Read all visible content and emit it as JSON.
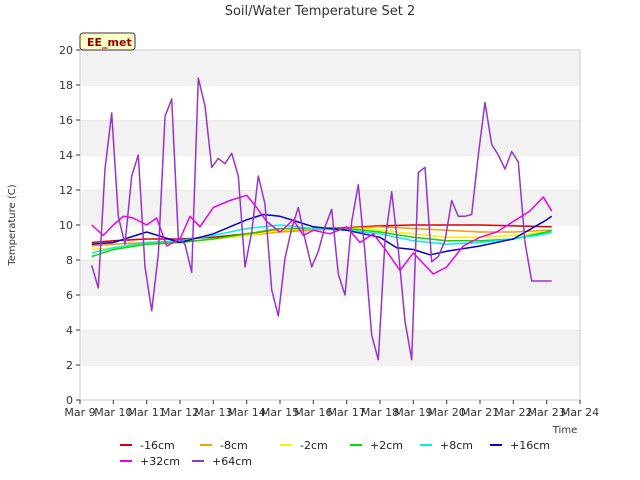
{
  "chart_data": {
    "type": "line",
    "title": "Soil/Water Temperature Set 2",
    "xlabel": "Time",
    "ylabel": "Temperature (C)",
    "ylim": [
      0,
      20
    ],
    "yticks": [
      0,
      2,
      4,
      6,
      8,
      10,
      12,
      14,
      16,
      18,
      20
    ],
    "xlim": [
      9,
      24
    ],
    "xtick_values": [
      9,
      10,
      11,
      12,
      13,
      14,
      15,
      16,
      17,
      18,
      19,
      20,
      21,
      22,
      23,
      24
    ],
    "xtick_labels": [
      "Mar 9",
      "Mar 10",
      "Mar 11",
      "Mar 12",
      "Mar 13",
      "Mar 14",
      "Mar 15",
      "Mar 16",
      "Mar 17",
      "Mar 18",
      "Mar 19",
      "Mar 20",
      "Mar 21",
      "Mar 22",
      "Mar 23",
      "Mar 24"
    ],
    "grid": "horizontal bands",
    "annotation": "EE_met",
    "legend_position": "bottom",
    "series": [
      {
        "name": "-16cm",
        "color": "#dd0000",
        "x": [
          9.35,
          10,
          11,
          12,
          13,
          14,
          15,
          16,
          17,
          17.5,
          18,
          19,
          20,
          21,
          22,
          23,
          23.15
        ],
        "y": [
          9.0,
          9.1,
          9.2,
          9.2,
          9.3,
          9.5,
          9.7,
          9.8,
          9.85,
          9.9,
          9.95,
          10.0,
          10.0,
          10.0,
          9.95,
          9.9,
          9.9
        ]
      },
      {
        "name": "-8cm",
        "color": "#ff9900",
        "x": [
          9.35,
          10,
          11,
          12,
          13,
          14,
          15,
          16,
          17,
          17.5,
          18,
          19,
          20,
          21,
          22,
          23,
          23.15
        ],
        "y": [
          8.8,
          8.9,
          9.0,
          9.0,
          9.2,
          9.4,
          9.6,
          9.7,
          9.8,
          9.85,
          9.9,
          9.8,
          9.7,
          9.6,
          9.6,
          9.7,
          9.7
        ]
      },
      {
        "name": "-2cm",
        "color": "#ffee00",
        "x": [
          9.35,
          10,
          11,
          12,
          13,
          14,
          15,
          16,
          17,
          17.5,
          18,
          19,
          20,
          21,
          22,
          23,
          23.15
        ],
        "y": [
          8.6,
          8.7,
          8.9,
          9.0,
          9.2,
          9.4,
          9.7,
          9.8,
          9.8,
          9.8,
          9.7,
          9.5,
          9.3,
          9.3,
          9.4,
          9.6,
          9.6
        ]
      },
      {
        "name": "+2cm",
        "color": "#00dd00",
        "x": [
          9.35,
          10,
          11,
          12,
          13,
          14,
          15,
          16,
          17,
          17.5,
          18,
          19,
          20,
          21,
          22,
          23,
          23.15
        ],
        "y": [
          8.2,
          8.6,
          8.9,
          9.0,
          9.2,
          9.5,
          9.8,
          9.8,
          9.8,
          9.7,
          9.6,
          9.3,
          9.1,
          9.1,
          9.2,
          9.6,
          9.7
        ]
      },
      {
        "name": "+8cm",
        "color": "#00eeee",
        "x": [
          9.35,
          10,
          11,
          12,
          13,
          14,
          15,
          16,
          17,
          17.5,
          18,
          19,
          20,
          21,
          22,
          23,
          23.15
        ],
        "y": [
          8.4,
          8.7,
          9.0,
          9.1,
          9.4,
          9.8,
          10.0,
          9.8,
          9.7,
          9.6,
          9.5,
          9.1,
          8.9,
          9.0,
          9.2,
          9.5,
          9.6
        ]
      },
      {
        "name": "+16cm",
        "color": "#0000cc",
        "x": [
          9.35,
          10,
          11,
          12,
          13,
          14,
          14.5,
          15,
          15.5,
          16,
          17,
          17.5,
          18,
          18.5,
          19,
          19.5,
          20,
          21,
          22,
          23,
          23.15
        ],
        "y": [
          8.9,
          9.0,
          9.6,
          9.0,
          9.5,
          10.3,
          10.6,
          10.5,
          10.2,
          9.9,
          9.7,
          9.5,
          9.3,
          8.7,
          8.6,
          8.3,
          8.5,
          8.8,
          9.2,
          10.3,
          10.5
        ]
      },
      {
        "name": "+32cm",
        "color": "#ee00ee",
        "x": [
          9.35,
          9.7,
          10,
          10.3,
          10.6,
          11,
          11.3,
          11.6,
          12,
          12.3,
          12.6,
          13,
          13.5,
          14,
          14.3,
          14.6,
          15,
          15.4,
          15.7,
          16,
          16.5,
          17,
          17.4,
          17.8,
          18.2,
          18.6,
          19,
          19.3,
          19.6,
          20,
          20.5,
          21,
          21.5,
          22,
          22.5,
          22.9,
          23.15
        ],
        "y": [
          10.0,
          9.4,
          10.0,
          10.5,
          10.4,
          10.0,
          10.4,
          8.8,
          9.2,
          10.5,
          9.9,
          11.0,
          11.4,
          11.7,
          11.0,
          10.2,
          9.6,
          10.3,
          9.4,
          9.7,
          9.5,
          9.9,
          9.0,
          9.5,
          8.5,
          7.4,
          8.4,
          7.8,
          7.2,
          7.6,
          8.8,
          9.3,
          9.6,
          10.2,
          10.8,
          11.6,
          10.8
        ]
      },
      {
        "name": "+64cm",
        "color": "#9933cc",
        "x": [
          9.35,
          9.55,
          9.75,
          9.95,
          10.15,
          10.35,
          10.55,
          10.75,
          10.95,
          11.15,
          11.35,
          11.55,
          11.75,
          11.95,
          12.15,
          12.35,
          12.55,
          12.75,
          12.95,
          13.15,
          13.35,
          13.55,
          13.75,
          13.95,
          14.15,
          14.35,
          14.55,
          14.75,
          14.95,
          15.15,
          15.35,
          15.55,
          15.75,
          15.95,
          16.15,
          16.35,
          16.55,
          16.75,
          16.95,
          17.15,
          17.35,
          17.55,
          17.75,
          17.95,
          18.15,
          18.35,
          18.55,
          18.75,
          18.95,
          19.15,
          19.35,
          19.55,
          19.75,
          19.95,
          20.15,
          20.35,
          20.55,
          20.75,
          20.95,
          21.15,
          21.35,
          21.55,
          21.75,
          21.95,
          22.15,
          22.35,
          22.55,
          22.75,
          22.95,
          23.15
        ],
        "y": [
          7.7,
          6.4,
          13.2,
          16.4,
          10.5,
          8.9,
          12.8,
          14.0,
          7.6,
          5.1,
          8.3,
          16.2,
          17.2,
          9.3,
          8.9,
          7.3,
          18.4,
          16.8,
          13.3,
          13.8,
          13.5,
          14.1,
          12.8,
          7.6,
          9.6,
          12.8,
          11.2,
          6.3,
          4.8,
          8.1,
          9.8,
          11.0,
          9.2,
          7.6,
          8.5,
          9.9,
          10.9,
          7.2,
          6.0,
          10.2,
          12.3,
          8.4,
          3.7,
          2.3,
          9.1,
          11.9,
          8.6,
          4.5,
          2.3,
          13.0,
          13.3,
          7.9,
          8.2,
          9.1,
          11.4,
          10.5,
          10.5,
          10.6,
          14.0,
          17.0,
          14.6,
          14.0,
          13.2,
          14.2,
          13.6,
          9.0,
          6.8,
          6.8,
          6.8,
          6.8
        ]
      }
    ]
  }
}
